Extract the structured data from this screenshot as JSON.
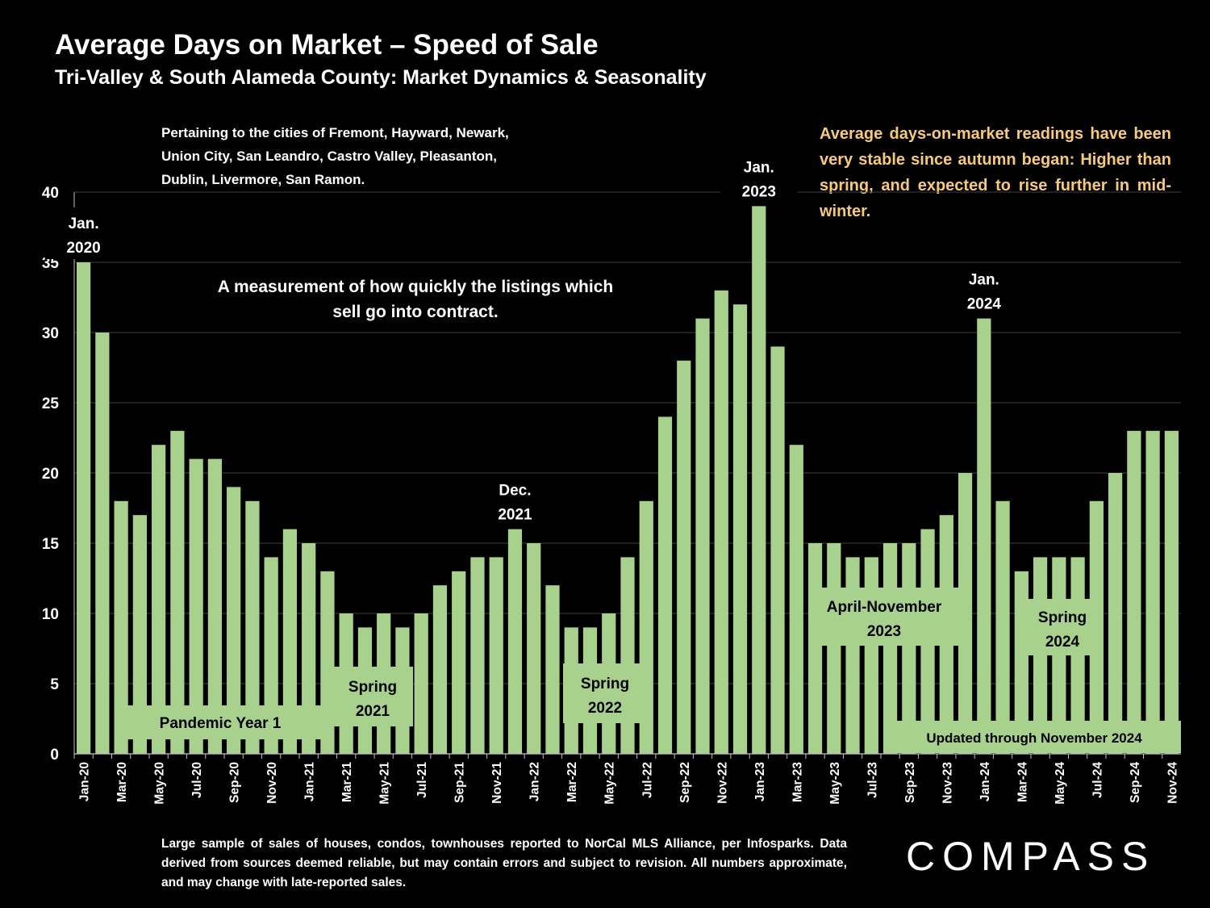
{
  "title": "Average Days on Market – Speed of Sale",
  "subtitle": "Tri-Valley & South Alameda County: Market Dynamics & Seasonality",
  "cities_note": "Pertaining to the cities of Fremont, Hayward, Newark, Union City, San Leandro, Castro Valley, Pleasanton, Dublin, Livermore, San Ramon.",
  "trend_note": "Average days-on-market readings have been very stable since autumn began: Higher than spring, and expected to rise further in mid-winter.",
  "measure_note": "A measurement of how quickly the listings which sell go into contract.",
  "footer": "Large sample of sales of houses, condos, townhouses reported to NorCal MLS Alliance, per Infosparks. Data derived from sources deemed reliable, but may contain errors and subject to revision. All numbers approximate, and may change with late-reported sales.",
  "logo": "COMPASS",
  "colors": {
    "bar": "#a9d18e",
    "background": "#000000",
    "note": "#f7c97a",
    "grid": "#404040"
  },
  "chart_data": {
    "type": "bar",
    "ylim": [
      0,
      40
    ],
    "yticks": [
      0,
      5,
      10,
      15,
      20,
      25,
      30,
      35,
      40
    ],
    "grid": true,
    "categories": [
      "Jan-20",
      "Feb-20",
      "Mar-20",
      "Apr-20",
      "May-20",
      "Jun-20",
      "Jul-20",
      "Aug-20",
      "Sep-20",
      "Oct-20",
      "Nov-20",
      "Dec-20",
      "Jan-21",
      "Feb-21",
      "Mar-21",
      "Apr-21",
      "May-21",
      "Jun-21",
      "Jul-21",
      "Aug-21",
      "Sep-21",
      "Oct-21",
      "Nov-21",
      "Dec-21",
      "Jan-22",
      "Feb-22",
      "Mar-22",
      "Apr-22",
      "May-22",
      "Jun-22",
      "Jul-22",
      "Aug-22",
      "Sep-22",
      "Oct-22",
      "Nov-22",
      "Dec-22",
      "Jan-23",
      "Feb-23",
      "Mar-23",
      "Apr-23",
      "May-23",
      "Jun-23",
      "Jul-23",
      "Aug-23",
      "Sep-23",
      "Oct-23",
      "Nov-23",
      "Dec-23",
      "Jan-24",
      "Feb-24",
      "Mar-24",
      "Apr-24",
      "May-24",
      "Jun-24",
      "Jul-24",
      "Aug-24",
      "Sep-24",
      "Oct-24",
      "Nov-24"
    ],
    "tick_labels": [
      "Jan-20",
      "Mar-20",
      "May-20",
      "Jul-20",
      "Sep-20",
      "Nov-20",
      "Jan-21",
      "Mar-21",
      "May-21",
      "Jul-21",
      "Sep-21",
      "Nov-21",
      "Jan-22",
      "Mar-22",
      "May-22",
      "Jul-22",
      "Sep-22",
      "Nov-22",
      "Jan-23",
      "Mar-23",
      "May-23",
      "Jul-23",
      "Sep-23",
      "Nov-23",
      "Jan-24",
      "Mar-24",
      "May-24",
      "Jul-24",
      "Sep-24",
      "Nov-24"
    ],
    "values": [
      35,
      30,
      18,
      17,
      22,
      23,
      21,
      21,
      19,
      18,
      14,
      16,
      15,
      13,
      10,
      9,
      10,
      9,
      10,
      12,
      13,
      14,
      14,
      16,
      15,
      12,
      9,
      9,
      10,
      14,
      18,
      24,
      28,
      31,
      33,
      32,
      39,
      29,
      22,
      15,
      15,
      14,
      14,
      15,
      15,
      16,
      17,
      20,
      31,
      18,
      13,
      14,
      14,
      14,
      18,
      20,
      23,
      23,
      23
    ],
    "annotations": [
      {
        "category": "Jan-20",
        "line1": "Jan.",
        "line2": "2020"
      },
      {
        "category": "Dec-21",
        "line1": "Dec.",
        "line2": "2021"
      },
      {
        "category": "Jan-23",
        "line1": "Jan.",
        "line2": "2023"
      },
      {
        "category": "Jan-24",
        "line1": "Jan.",
        "line2": "2024"
      }
    ],
    "period_labels": [
      {
        "line1": "Pandemic Year 1",
        "line2": ""
      },
      {
        "line1": "Spring",
        "line2": "2021"
      },
      {
        "line1": "Spring",
        "line2": "2022"
      },
      {
        "line1": "April-November",
        "line2": "2023"
      },
      {
        "line1": "Spring",
        "line2": "2024"
      }
    ],
    "updated_label": "Updated through November 2024"
  }
}
